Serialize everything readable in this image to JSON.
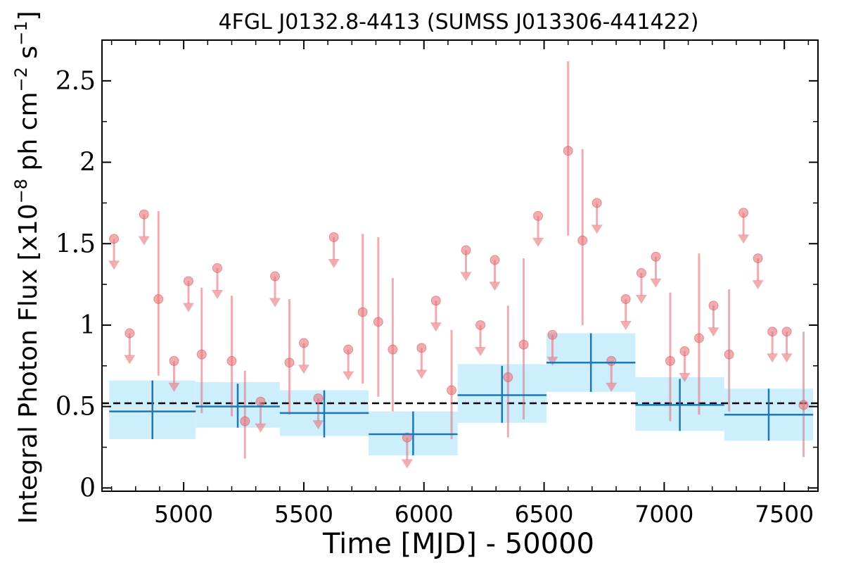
{
  "chart_data": {
    "type": "scatter",
    "title": "4FGL J0132.8-4413 (SUMSS J013306-441422)",
    "xlabel": "Time [MJD] - 50000",
    "ylabel": "Integral Photon Flux [x10",
    "ylabel_exp1": "−8",
    "ylabel_mid": " ph cm",
    "ylabel_exp2": "−2",
    "ylabel_mid2": " s",
    "ylabel_exp3": "−1",
    "ylabel_end": "]",
    "xlim": [
      4660,
      7640
    ],
    "ylim": [
      -0.02,
      2.75
    ],
    "xticks": [
      5000,
      5500,
      6000,
      6500,
      7000,
      7500
    ],
    "xtick_labels": [
      "5000",
      "5500",
      "6000",
      "6500",
      "7000",
      "7500"
    ],
    "yticks": [
      0,
      0.5,
      1,
      1.5,
      2,
      2.5
    ],
    "ytick_labels": [
      "0",
      "0.5",
      "1",
      "1.5",
      "2",
      "2.5"
    ],
    "average_flux": 0.52,
    "colors": {
      "points": "#e8747c",
      "bins": "#1f77b4",
      "band": "#cdeefc",
      "average": "#000000"
    },
    "binned": [
      {
        "x0": 4690,
        "x1": 5050,
        "y": 0.47,
        "ylo": 0.3,
        "yhi": 0.66,
        "band_lo": 0.3,
        "band_hi": 0.66
      },
      {
        "x0": 5050,
        "x1": 5400,
        "y": 0.5,
        "ylo": 0.37,
        "yhi": 0.64,
        "band_lo": 0.37,
        "band_hi": 0.65
      },
      {
        "x0": 5400,
        "x1": 5770,
        "y": 0.46,
        "ylo": 0.31,
        "yhi": 0.6,
        "band_lo": 0.32,
        "band_hi": 0.6
      },
      {
        "x0": 5770,
        "x1": 6140,
        "y": 0.33,
        "ylo": 0.2,
        "yhi": 0.47,
        "band_lo": 0.2,
        "band_hi": 0.47
      },
      {
        "x0": 6140,
        "x1": 6510,
        "y": 0.57,
        "ylo": 0.4,
        "yhi": 0.75,
        "band_lo": 0.4,
        "band_hi": 0.76
      },
      {
        "x0": 6510,
        "x1": 6880,
        "y": 0.77,
        "ylo": 0.59,
        "yhi": 0.95,
        "band_lo": 0.59,
        "band_hi": 0.95
      },
      {
        "x0": 6880,
        "x1": 7250,
        "y": 0.51,
        "ylo": 0.35,
        "yhi": 0.67,
        "band_lo": 0.35,
        "band_hi": 0.68
      },
      {
        "x0": 7250,
        "x1": 7620,
        "y": 0.45,
        "ylo": 0.29,
        "yhi": 0.61,
        "band_lo": 0.29,
        "band_hi": 0.61
      }
    ],
    "detections": [
      {
        "x": 4895,
        "y": 1.16,
        "ylo": 0.69,
        "yhi": 1.7
      },
      {
        "x": 5075,
        "y": 0.82,
        "ylo": 0.46,
        "yhi": 1.23
      },
      {
        "x": 5200,
        "y": 0.78,
        "ylo": 0.44,
        "yhi": 1.18
      },
      {
        "x": 5255,
        "y": 0.41,
        "ylo": 0.18,
        "yhi": 0.72
      },
      {
        "x": 5440,
        "y": 0.77,
        "ylo": 0.45,
        "yhi": 1.16
      },
      {
        "x": 5745,
        "y": 1.08,
        "ylo": 0.64,
        "yhi": 1.56
      },
      {
        "x": 5810,
        "y": 1.02,
        "ylo": 0.56,
        "yhi": 1.54
      },
      {
        "x": 5870,
        "y": 0.85,
        "ylo": 0.47,
        "yhi": 1.29
      },
      {
        "x": 6115,
        "y": 0.6,
        "ylo": 0.3,
        "yhi": 0.97
      },
      {
        "x": 6350,
        "y": 0.68,
        "ylo": 0.31,
        "yhi": 1.12
      },
      {
        "x": 6415,
        "y": 0.88,
        "ylo": 0.42,
        "yhi": 1.41
      },
      {
        "x": 6600,
        "y": 2.07,
        "ylo": 1.55,
        "yhi": 2.62
      },
      {
        "x": 6660,
        "y": 1.52,
        "ylo": 1.0,
        "yhi": 2.08
      },
      {
        "x": 7025,
        "y": 0.78,
        "ylo": 0.41,
        "yhi": 1.2
      },
      {
        "x": 7145,
        "y": 0.92,
        "ylo": 0.45,
        "yhi": 1.44
      },
      {
        "x": 7270,
        "y": 0.82,
        "ylo": 0.47,
        "yhi": 1.22
      },
      {
        "x": 7580,
        "y": 0.51,
        "ylo": 0.19,
        "yhi": 0.96
      }
    ],
    "upper_limits": [
      {
        "x": 4710,
        "y": 1.53
      },
      {
        "x": 4775,
        "y": 0.95
      },
      {
        "x": 4835,
        "y": 1.68
      },
      {
        "x": 4960,
        "y": 0.78
      },
      {
        "x": 5020,
        "y": 1.27
      },
      {
        "x": 5140,
        "y": 1.35
      },
      {
        "x": 5320,
        "y": 0.53
      },
      {
        "x": 5380,
        "y": 1.3
      },
      {
        "x": 5500,
        "y": 0.89
      },
      {
        "x": 5560,
        "y": 0.55
      },
      {
        "x": 5625,
        "y": 1.54
      },
      {
        "x": 5685,
        "y": 0.85
      },
      {
        "x": 5930,
        "y": 0.31
      },
      {
        "x": 5990,
        "y": 0.86
      },
      {
        "x": 6050,
        "y": 1.15
      },
      {
        "x": 6175,
        "y": 1.46
      },
      {
        "x": 6235,
        "y": 1.0
      },
      {
        "x": 6295,
        "y": 1.4
      },
      {
        "x": 6475,
        "y": 1.67
      },
      {
        "x": 6535,
        "y": 0.94
      },
      {
        "x": 6720,
        "y": 1.75
      },
      {
        "x": 6780,
        "y": 0.78
      },
      {
        "x": 6840,
        "y": 1.16
      },
      {
        "x": 6905,
        "y": 1.32
      },
      {
        "x": 6965,
        "y": 1.42
      },
      {
        "x": 7085,
        "y": 0.84
      },
      {
        "x": 7205,
        "y": 1.12
      },
      {
        "x": 7330,
        "y": 1.69
      },
      {
        "x": 7390,
        "y": 1.41
      },
      {
        "x": 7450,
        "y": 0.96
      },
      {
        "x": 7510,
        "y": 0.96
      }
    ]
  }
}
